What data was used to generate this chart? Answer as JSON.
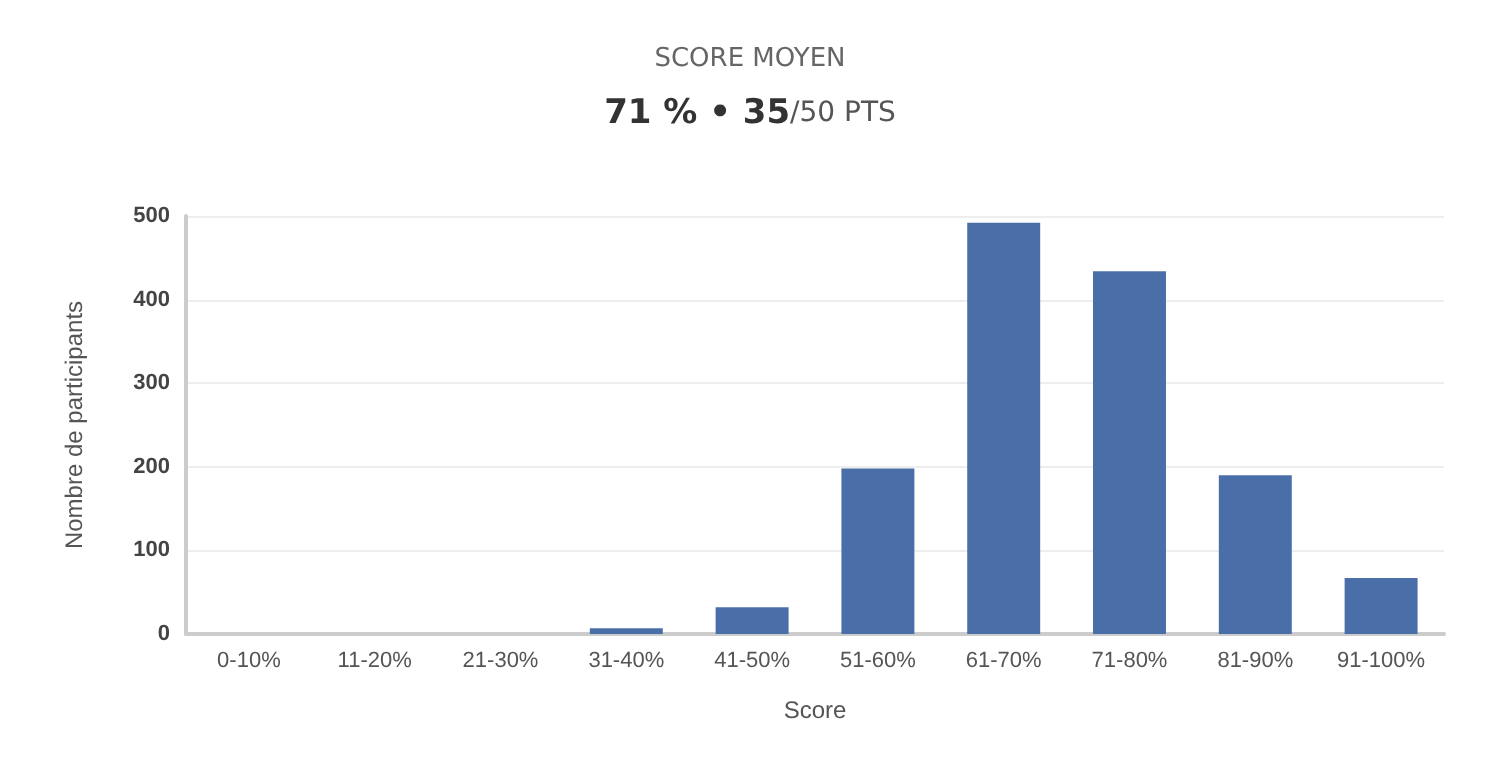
{
  "chart_data": {
    "type": "bar",
    "title": "SCORE MOYEN",
    "subtitle": "71 % • 35/50 PTS",
    "xlabel": "Score",
    "ylabel": "Nombre de participants",
    "categories": [
      "0-10%",
      "11-20%",
      "21-30%",
      "31-40%",
      "41-50%",
      "51-60%",
      "61-70%",
      "71-80%",
      "81-90%",
      "91-100%"
    ],
    "values": [
      0,
      0,
      0,
      7,
      32,
      198,
      492,
      434,
      190,
      67
    ],
    "color": "#4a6fa8",
    "ylim": [
      0,
      500
    ],
    "yticks": [
      0,
      100,
      200,
      300,
      400,
      500
    ],
    "grid": "y"
  }
}
